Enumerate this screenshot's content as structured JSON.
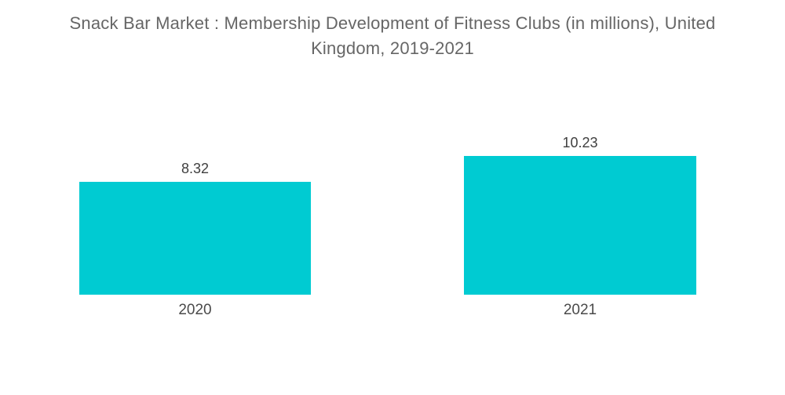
{
  "chart_data": {
    "type": "bar",
    "title": "Snack Bar Market : Membership Development of Fitness Clubs (in millions), United Kingdom, 2019-2021",
    "categories": [
      "2020",
      "2021"
    ],
    "values": [
      8.32,
      10.23
    ],
    "value_labels": [
      "8.32",
      "10.23"
    ],
    "xlabel": "",
    "ylabel": "",
    "ylim": [
      0,
      11
    ],
    "grid": false,
    "legend": "none",
    "axes_visible": false,
    "bar_color": "#00CBD2",
    "title_color": "#666666",
    "value_label_color": "#3f3f3f",
    "category_label_color": "#4a4a4a",
    "background_color": "#ffffff"
  }
}
